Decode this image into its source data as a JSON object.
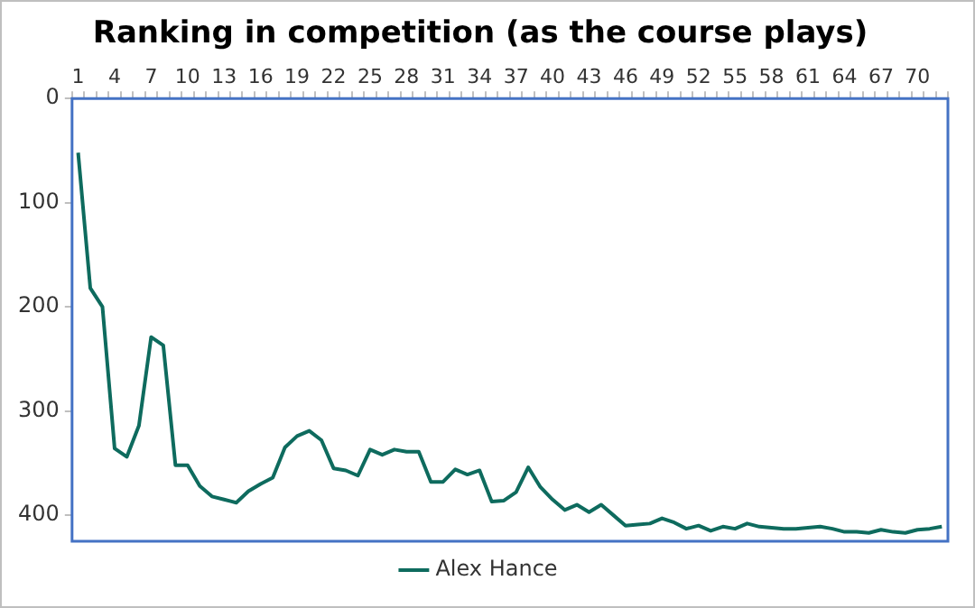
{
  "chart_data": {
    "type": "line",
    "title": "Ranking in competition (as the course plays)",
    "categories": [
      "1",
      null,
      null,
      "4",
      null,
      null,
      "7",
      null,
      null,
      "10",
      null,
      null,
      "13",
      null,
      null,
      "16",
      null,
      null,
      "19",
      null,
      null,
      "22",
      null,
      null,
      "25",
      null,
      null,
      "28",
      null,
      null,
      "31",
      null,
      null,
      "34",
      null,
      null,
      "37",
      null,
      null,
      "40",
      null,
      null,
      "43",
      null,
      null,
      "46",
      null,
      null,
      "49",
      null,
      null,
      "52",
      null,
      null,
      "55",
      null,
      null,
      "58",
      null,
      null,
      "61",
      null,
      null,
      "64",
      null,
      null,
      "67",
      null,
      null,
      "70",
      null,
      null
    ],
    "series": [
      {
        "name": "Alex Hance",
        "color": "#0e6b5e",
        "values": [
          52,
          182,
          200,
          336,
          344,
          314,
          229,
          237,
          352,
          352,
          372,
          382,
          385,
          388,
          377,
          370,
          364,
          335,
          324,
          319,
          328,
          355,
          357,
          362,
          337,
          342,
          337,
          339,
          339,
          368,
          368,
          356,
          361,
          357,
          387,
          386,
          378,
          354,
          373,
          385,
          395,
          390,
          397,
          390,
          400,
          410,
          409,
          408,
          403,
          407,
          413,
          410,
          415,
          411,
          413,
          408,
          411,
          412,
          413,
          413,
          412,
          411,
          413,
          416,
          416,
          417,
          414,
          416,
          417,
          414,
          413,
          411
        ]
      }
    ],
    "ylim": [
      425,
      0
    ],
    "yticks": [
      0,
      100,
      200,
      300,
      400
    ],
    "grid": false,
    "legend": "bottom"
  }
}
